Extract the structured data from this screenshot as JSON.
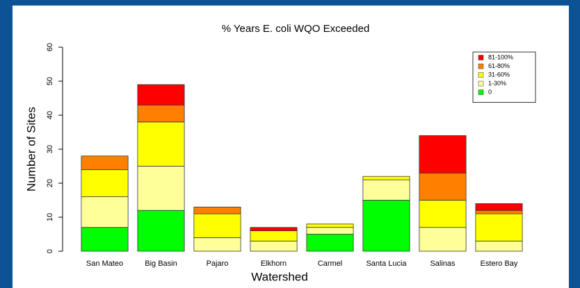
{
  "chart_data": {
    "type": "stacked_bar",
    "title": "% Years E. coli  WQO Exceeded",
    "x_label": "Watershed",
    "y_label": "Number of Sites",
    "categories": [
      "San Mateo",
      "Big Basin",
      "Pajaro",
      "Elkhorn",
      "Carmel",
      "Santa Lucia",
      "Salinas",
      "Estero Bay"
    ],
    "series": [
      {
        "name": "0",
        "color": "#00ff00",
        "values": [
          7,
          12,
          0,
          0,
          5,
          15,
          0,
          0
        ]
      },
      {
        "name": "1-30%",
        "color": "#ffff99",
        "values": [
          9,
          13,
          4,
          3,
          2,
          6,
          7,
          3
        ]
      },
      {
        "name": "31-60%",
        "color": "#ffff00",
        "values": [
          8,
          13,
          7,
          3,
          1,
          1,
          8,
          8
        ]
      },
      {
        "name": "61-80%",
        "color": "#ff7f00",
        "values": [
          4,
          5,
          2,
          0,
          0,
          0,
          8,
          1
        ]
      },
      {
        "name": "81-100%",
        "color": "#ff0000",
        "values": [
          0,
          6,
          0,
          1,
          0,
          0,
          11,
          2
        ]
      }
    ],
    "ylim": [
      0,
      60
    ],
    "yticks": [
      0,
      10,
      20,
      30,
      40,
      50,
      60
    ],
    "legend": "top-right"
  }
}
